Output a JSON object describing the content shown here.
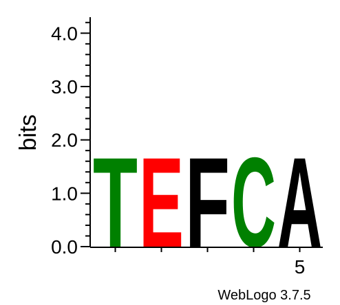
{
  "chart_data": {
    "type": "sequence-logo",
    "ylabel": "bits",
    "ylim": [
      0,
      4.3
    ],
    "yticks": [
      "0.0",
      "1.0",
      "2.0",
      "3.0",
      "4.0"
    ],
    "xtick_labels": [
      {
        "position": 5,
        "label": "5"
      }
    ],
    "positions": [
      1,
      2,
      3,
      4,
      5
    ],
    "stacks": [
      {
        "position": 1,
        "letters": [
          {
            "letter": "T",
            "bits": 1.75,
            "color": "#008000"
          }
        ]
      },
      {
        "position": 2,
        "letters": [
          {
            "letter": "E",
            "bits": 1.75,
            "color": "#ff0000"
          }
        ]
      },
      {
        "position": 3,
        "letters": [
          {
            "letter": "F",
            "bits": 1.75,
            "color": "#000000"
          }
        ]
      },
      {
        "position": 4,
        "letters": [
          {
            "letter": "C",
            "bits": 1.75,
            "color": "#008000"
          }
        ]
      },
      {
        "position": 5,
        "letters": [
          {
            "letter": "A",
            "bits": 1.75,
            "color": "#000000"
          }
        ]
      }
    ]
  },
  "footer": {
    "credit": "WebLogo 3.7.5"
  }
}
